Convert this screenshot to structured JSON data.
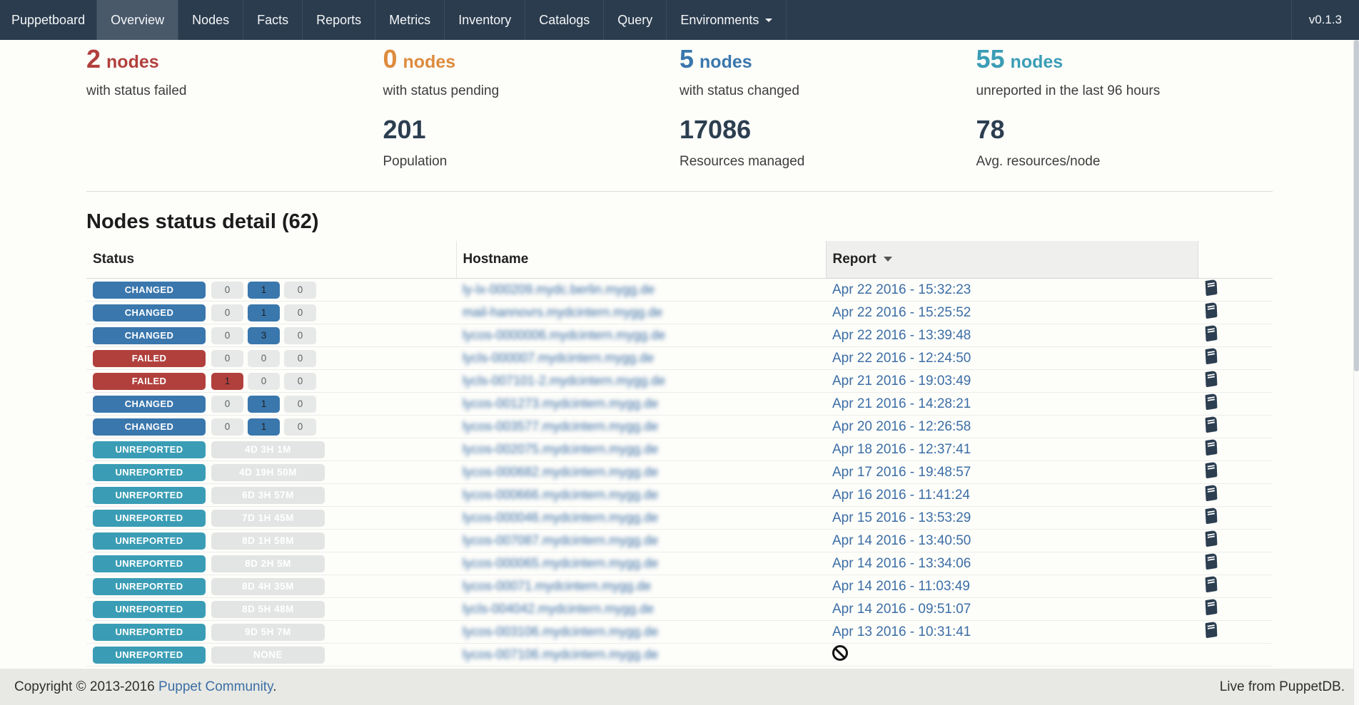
{
  "colors": {
    "changed": "#3a77ad",
    "failed": "#b1403d",
    "unreported": "#3a9db5",
    "pending": "#dd8b3d",
    "navy": "#2c3e50",
    "link": "#3c6ea5"
  },
  "navbar": {
    "brand": "Puppetboard",
    "items": [
      {
        "label": "Overview",
        "active": true,
        "dropdown": false
      },
      {
        "label": "Nodes",
        "active": false,
        "dropdown": false
      },
      {
        "label": "Facts",
        "active": false,
        "dropdown": false
      },
      {
        "label": "Reports",
        "active": false,
        "dropdown": false
      },
      {
        "label": "Metrics",
        "active": false,
        "dropdown": false
      },
      {
        "label": "Inventory",
        "active": false,
        "dropdown": false
      },
      {
        "label": "Catalogs",
        "active": false,
        "dropdown": false
      },
      {
        "label": "Query",
        "active": false,
        "dropdown": false
      },
      {
        "label": "Environments",
        "active": false,
        "dropdown": true
      }
    ],
    "version": "v0.1.3"
  },
  "stats": {
    "columns": [
      {
        "top": {
          "value": "2",
          "suffix": "nodes",
          "color_key": "failed",
          "label": "with status failed"
        },
        "bottom": null
      },
      {
        "top": {
          "value": "0",
          "suffix": "nodes",
          "color_key": "pending",
          "label": "with status pending"
        },
        "bottom": {
          "value": "201",
          "label": "Population"
        }
      },
      {
        "top": {
          "value": "5",
          "suffix": "nodes",
          "color_key": "changed",
          "label": "with status changed"
        },
        "bottom": {
          "value": "17086",
          "label": "Resources managed"
        }
      },
      {
        "top": {
          "value": "55",
          "suffix": "nodes",
          "color_key": "unreported",
          "label": "unreported in the last 96 hours"
        },
        "bottom": {
          "value": "78",
          "label": "Avg. resources/node"
        }
      }
    ]
  },
  "section": {
    "title": "Nodes status detail (62)"
  },
  "table": {
    "headers": {
      "status": "Status",
      "hostname": "Hostname",
      "report": "Report"
    },
    "sorted_column": "report",
    "rows": [
      {
        "status": "CHANGED",
        "status_key": "changed",
        "counts": [
          {
            "text": "0",
            "highlight": false
          },
          {
            "text": "1",
            "highlight": true
          },
          {
            "text": "0",
            "highlight": false
          }
        ],
        "duration": null,
        "hostname": "ly-lx-000209.mydc.berlin.mygg.de",
        "report_date": "Apr 22 2016 - 15:32:23",
        "ban": false,
        "book": true
      },
      {
        "status": "CHANGED",
        "status_key": "changed",
        "counts": [
          {
            "text": "0",
            "highlight": false
          },
          {
            "text": "1",
            "highlight": true
          },
          {
            "text": "0",
            "highlight": false
          }
        ],
        "duration": null,
        "hostname": "mail-hannovrs.mydcintern.mygg.de",
        "report_date": "Apr 22 2016 - 15:25:52",
        "ban": false,
        "book": true
      },
      {
        "status": "CHANGED",
        "status_key": "changed",
        "counts": [
          {
            "text": "0",
            "highlight": false
          },
          {
            "text": "3",
            "highlight": true
          },
          {
            "text": "0",
            "highlight": false
          }
        ],
        "duration": null,
        "hostname": "lycos-0000006.mydcintern.mygg.de",
        "report_date": "Apr 22 2016 - 13:39:48",
        "ban": false,
        "book": true
      },
      {
        "status": "FAILED",
        "status_key": "failed",
        "counts": [
          {
            "text": "0",
            "highlight": false
          },
          {
            "text": "0",
            "highlight": false
          },
          {
            "text": "0",
            "highlight": false
          }
        ],
        "duration": null,
        "hostname": "lycls-000007.mydcintern.mygg.de",
        "report_date": "Apr 22 2016 - 12:24:50",
        "ban": false,
        "book": true
      },
      {
        "status": "FAILED",
        "status_key": "failed",
        "counts": [
          {
            "text": "1",
            "highlight": true
          },
          {
            "text": "0",
            "highlight": false
          },
          {
            "text": "0",
            "highlight": false
          }
        ],
        "duration": null,
        "hostname": "lycls-007101-2.mydcintern.mygg.de",
        "report_date": "Apr 21 2016 - 19:03:49",
        "ban": false,
        "book": true
      },
      {
        "status": "CHANGED",
        "status_key": "changed",
        "counts": [
          {
            "text": "0",
            "highlight": false
          },
          {
            "text": "1",
            "highlight": true
          },
          {
            "text": "0",
            "highlight": false
          }
        ],
        "duration": null,
        "hostname": "lycos-001273.mydcintern.mygg.de",
        "report_date": "Apr 21 2016 - 14:28:21",
        "ban": false,
        "book": true
      },
      {
        "status": "CHANGED",
        "status_key": "changed",
        "counts": [
          {
            "text": "0",
            "highlight": false
          },
          {
            "text": "1",
            "highlight": true
          },
          {
            "text": "0",
            "highlight": false
          }
        ],
        "duration": null,
        "hostname": "lycos-003577.mydcintern.mygg.de",
        "report_date": "Apr 20 2016 - 12:26:58",
        "ban": false,
        "book": true
      },
      {
        "status": "UNREPORTED",
        "status_key": "unreported",
        "counts": null,
        "duration": "4D 3H 1M",
        "hostname": "lycos-002075.mydcintern.mygg.de",
        "report_date": "Apr 18 2016 - 12:37:41",
        "ban": false,
        "book": true
      },
      {
        "status": "UNREPORTED",
        "status_key": "unreported",
        "counts": null,
        "duration": "4D 19H 50M",
        "hostname": "lycos-000682.mydcintern.mygg.de",
        "report_date": "Apr 17 2016 - 19:48:57",
        "ban": false,
        "book": true
      },
      {
        "status": "UNREPORTED",
        "status_key": "unreported",
        "counts": null,
        "duration": "6D 3H 57M",
        "hostname": "lycos-000666.mydcintern.mygg.de",
        "report_date": "Apr 16 2016 - 11:41:24",
        "ban": false,
        "book": true
      },
      {
        "status": "UNREPORTED",
        "status_key": "unreported",
        "counts": null,
        "duration": "7D 1H 45M",
        "hostname": "lycos-000046.mydcintern.mygg.de",
        "report_date": "Apr 15 2016 - 13:53:29",
        "ban": false,
        "book": true
      },
      {
        "status": "UNREPORTED",
        "status_key": "unreported",
        "counts": null,
        "duration": "8D 1H 58M",
        "hostname": "lycos-007087.mydcintern.mygg.de",
        "report_date": "Apr 14 2016 - 13:40:50",
        "ban": false,
        "book": true
      },
      {
        "status": "UNREPORTED",
        "status_key": "unreported",
        "counts": null,
        "duration": "8D 2H 5M",
        "hostname": "lycos-000065.mydcintern.mygg.de",
        "report_date": "Apr 14 2016 - 13:34:06",
        "ban": false,
        "book": true
      },
      {
        "status": "UNREPORTED",
        "status_key": "unreported",
        "counts": null,
        "duration": "8D 4H 35M",
        "hostname": "lycos-00071.mydcintern.mygg.de",
        "report_date": "Apr 14 2016 - 11:03:49",
        "ban": false,
        "book": true
      },
      {
        "status": "UNREPORTED",
        "status_key": "unreported",
        "counts": null,
        "duration": "8D 5H 48M",
        "hostname": "lycls-004042.mydcintern.mygg.de",
        "report_date": "Apr 14 2016 - 09:51:07",
        "ban": false,
        "book": true
      },
      {
        "status": "UNREPORTED",
        "status_key": "unreported",
        "counts": null,
        "duration": "9D 5H 7M",
        "hostname": "lycos-003106.mydcintern.mygg.de",
        "report_date": "Apr 13 2016 - 10:31:41",
        "ban": false,
        "book": true
      },
      {
        "status": "UNREPORTED",
        "status_key": "unreported",
        "counts": null,
        "duration": "NONE",
        "hostname": "lycos-007106.mydcintern.mygg.de",
        "report_date": null,
        "ban": true,
        "book": false
      }
    ]
  },
  "footer": {
    "left_prefix": "Copyright © 2013-2016 ",
    "link": "Puppet Community",
    "left_suffix": ".",
    "right": "Live from PuppetDB."
  }
}
